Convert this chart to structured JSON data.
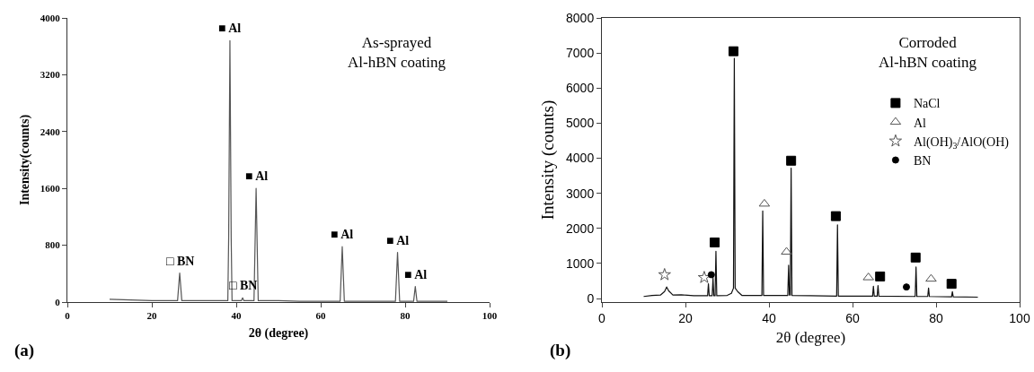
{
  "chart_data": [
    {
      "type": "line",
      "xlabel": "2θ (degree)",
      "ylabel": "Intensity(counts)",
      "xlim": [
        0,
        100
      ],
      "xticks": [
        0,
        20,
        40,
        60,
        80,
        100
      ],
      "ylim": [
        0,
        4000
      ],
      "yticks": [
        0,
        800,
        1600,
        2400,
        3200,
        4000
      ],
      "grid": false,
      "legend": false,
      "series": [
        {
          "color": "#555555",
          "x": [
            10,
            15,
            20,
            25,
            26.1,
            26.6,
            27.1,
            30,
            35,
            38.0,
            38.2,
            38.5,
            38.8,
            39.0,
            41.2,
            41.5,
            41.8,
            44.2,
            44.7,
            45.2,
            50,
            55,
            60,
            64.6,
            65.1,
            65.6,
            70,
            77.7,
            78.2,
            78.7,
            82,
            82.4,
            82.8,
            86,
            90
          ],
          "values": [
            40,
            30,
            20,
            20,
            20,
            410,
            20,
            20,
            20,
            20,
            900,
            3680,
            900,
            20,
            20,
            60,
            20,
            20,
            1600,
            20,
            20,
            10,
            10,
            10,
            780,
            10,
            10,
            10,
            700,
            10,
            10,
            220,
            10,
            10,
            10
          ]
        }
      ],
      "annotations": [
        {
          "text": "■ Al",
          "x": 38.5,
          "y": 3680
        },
        {
          "text": "■ Al",
          "x": 44.7,
          "y": 1600
        },
        {
          "text": "■ Al",
          "x": 65.1,
          "y": 780
        },
        {
          "text": "■ Al",
          "x": 78.2,
          "y": 700
        },
        {
          "text": "■ Al",
          "x": 82.4,
          "y": 220
        },
        {
          "text": "□ BN",
          "x": 26.6,
          "y": 410
        },
        {
          "text": "□ BN",
          "x": 41.5,
          "y": 60
        },
        "As-sprayed\nAl-hBN coating",
        "(a)"
      ]
    },
    {
      "type": "line",
      "xlabel": "2θ (degree)",
      "ylabel": "Intensity (counts)",
      "xlim": [
        0,
        100
      ],
      "xticks": [
        0,
        20,
        40,
        60,
        80,
        100
      ],
      "ylim": [
        -100,
        8000
      ],
      "yticks": [
        0,
        1000,
        2000,
        3000,
        4000,
        5000,
        6000,
        7000,
        8000
      ],
      "grid": false,
      "legend": "right",
      "series": [
        {
          "color": "#111111",
          "x": [
            10,
            12,
            14,
            15,
            15.5,
            16,
            17,
            19,
            22,
            25.3,
            25.5,
            25.7,
            26.4,
            26.6,
            26.8,
            27.1,
            27.3,
            27.5,
            30,
            31,
            31.5,
            31.7,
            31.9,
            32.5,
            33.5,
            38.3,
            38.5,
            38.7,
            44.5,
            44.7,
            44.9,
            45.1,
            45.3,
            45.5,
            50,
            56.2,
            56.4,
            56.6,
            64.8,
            65,
            65.2,
            65.9,
            66.1,
            66.3,
            75,
            75.2,
            75.4,
            78,
            78.2,
            78.4,
            83.7,
            83.9,
            84.1,
            90
          ],
          "values": [
            60,
            90,
            100,
            200,
            330,
            220,
            100,
            110,
            80,
            80,
            420,
            80,
            80,
            580,
            80,
            80,
            1350,
            80,
            90,
            150,
            300,
            6850,
            300,
            200,
            90,
            90,
            2500,
            90,
            90,
            950,
            100,
            100,
            3720,
            90,
            80,
            70,
            2100,
            70,
            70,
            350,
            70,
            70,
            370,
            70,
            60,
            900,
            60,
            60,
            300,
            60,
            50,
            200,
            50,
            40
          ]
        },
        {
          "type": "scatter",
          "name": "NaCl",
          "marker": "square",
          "color": "#000000",
          "x": [
            27,
            31.5,
            45.3,
            56,
            66.6,
            75.1,
            83.7
          ],
          "values": [
            1600,
            7050,
            3930,
            2350,
            630,
            1170,
            420
          ]
        },
        {
          "type": "scatter",
          "name": "Al",
          "marker": "triangle",
          "color": "#555555",
          "x": [
            38.9,
            44.2,
            63.8,
            78.8
          ],
          "values": [
            2700,
            1330,
            600,
            560
          ]
        },
        {
          "type": "scatter",
          "name": "Al(OH)$_{3}$/AlO(OH)",
          "marker": "star",
          "color": "#555555",
          "x": [
            15,
            24.5
          ],
          "values": [
            680,
            600
          ]
        },
        {
          "type": "scatter",
          "name": "BN",
          "marker": "circle",
          "color": "#000000",
          "x": [
            26.2,
            72.9
          ],
          "values": [
            680,
            330
          ]
        }
      ],
      "annotations": [
        "Corroded\nAl-hBN coating",
        "(b)"
      ]
    }
  ]
}
